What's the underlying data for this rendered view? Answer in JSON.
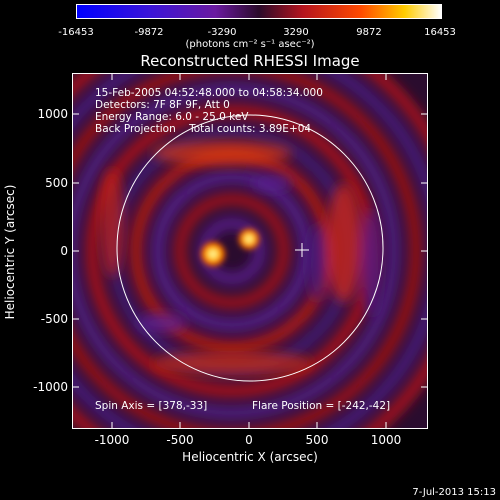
{
  "colorbar": {
    "ticks": [
      "-16453",
      "-9872",
      "-3290",
      "3290",
      "9872",
      "16453"
    ],
    "unit": "(photons cm⁻² s⁻¹ asec⁻²)"
  },
  "title": "Reconstructed RHESSI Image",
  "info": {
    "line1": "15-Feb-2005 04:52:48.000 to 04:58:34.000",
    "line2": "Detectors: 7F 8F 9F, Att 0",
    "line3": "Energy Range: 6.0 - 25.0 keV",
    "line4": "Back Projection    Total counts: 3.89E+04",
    "spin_axis": "Spin Axis = [378,-33]",
    "flare_position": "Flare Position = [-242,-42]"
  },
  "axes": {
    "xlabel": "Heliocentric X (arcsec)",
    "ylabel": "Heliocentric Y (arcsec)",
    "xticks": [
      "-1000",
      "-500",
      "0",
      "500",
      "1000"
    ],
    "yticks": [
      "1000",
      "500",
      "0",
      "-500",
      "-1000"
    ]
  },
  "footer": "7-Jul-2013 15:13"
}
